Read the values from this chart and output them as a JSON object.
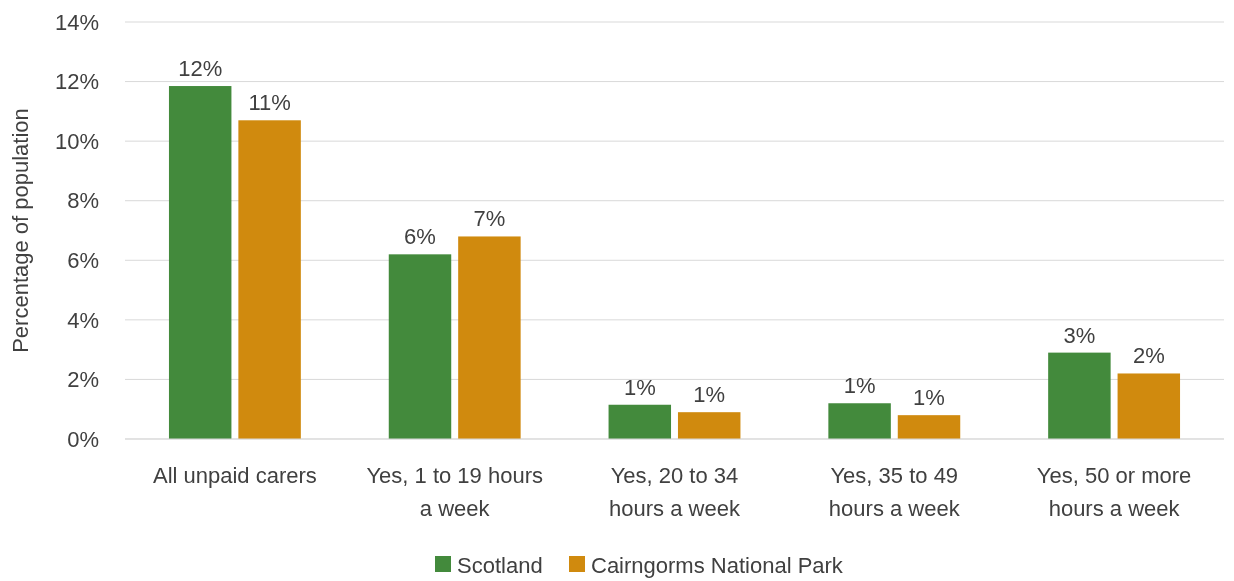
{
  "chart_data": {
    "type": "bar",
    "ylabel": "Percentage of population",
    "categories": [
      "All unpaid carers",
      "Yes, 1 to 19 hours a week",
      "Yes, 20 to 34 hours a week",
      "Yes, 35 to 49 hours a week",
      "Yes, 50 or more hours a week"
    ],
    "series": [
      {
        "name": "Scotland",
        "color": "#438a3c",
        "values": [
          11.85,
          6.2,
          1.15,
          1.2,
          2.9
        ],
        "value_labels": [
          "12%",
          "6%",
          "1%",
          "1%",
          "3%"
        ]
      },
      {
        "name": "Cairngorms National Park",
        "color": "#d08a0e",
        "values": [
          10.7,
          6.8,
          0.9,
          0.8,
          2.2
        ],
        "value_labels": [
          "11%",
          "7%",
          "1%",
          "1%",
          "2%"
        ]
      }
    ],
    "ylim": [
      0,
      14
    ],
    "yticks": [
      {
        "value": 0,
        "label": "0%"
      },
      {
        "value": 2,
        "label": "2%"
      },
      {
        "value": 4,
        "label": "4%"
      },
      {
        "value": 6,
        "label": "6%"
      },
      {
        "value": 8,
        "label": "8%"
      },
      {
        "value": 10,
        "label": "10%"
      },
      {
        "value": 12,
        "label": "12%"
      },
      {
        "value": 14,
        "label": "14%"
      }
    ],
    "grid": "y",
    "legend": "bottom"
  }
}
